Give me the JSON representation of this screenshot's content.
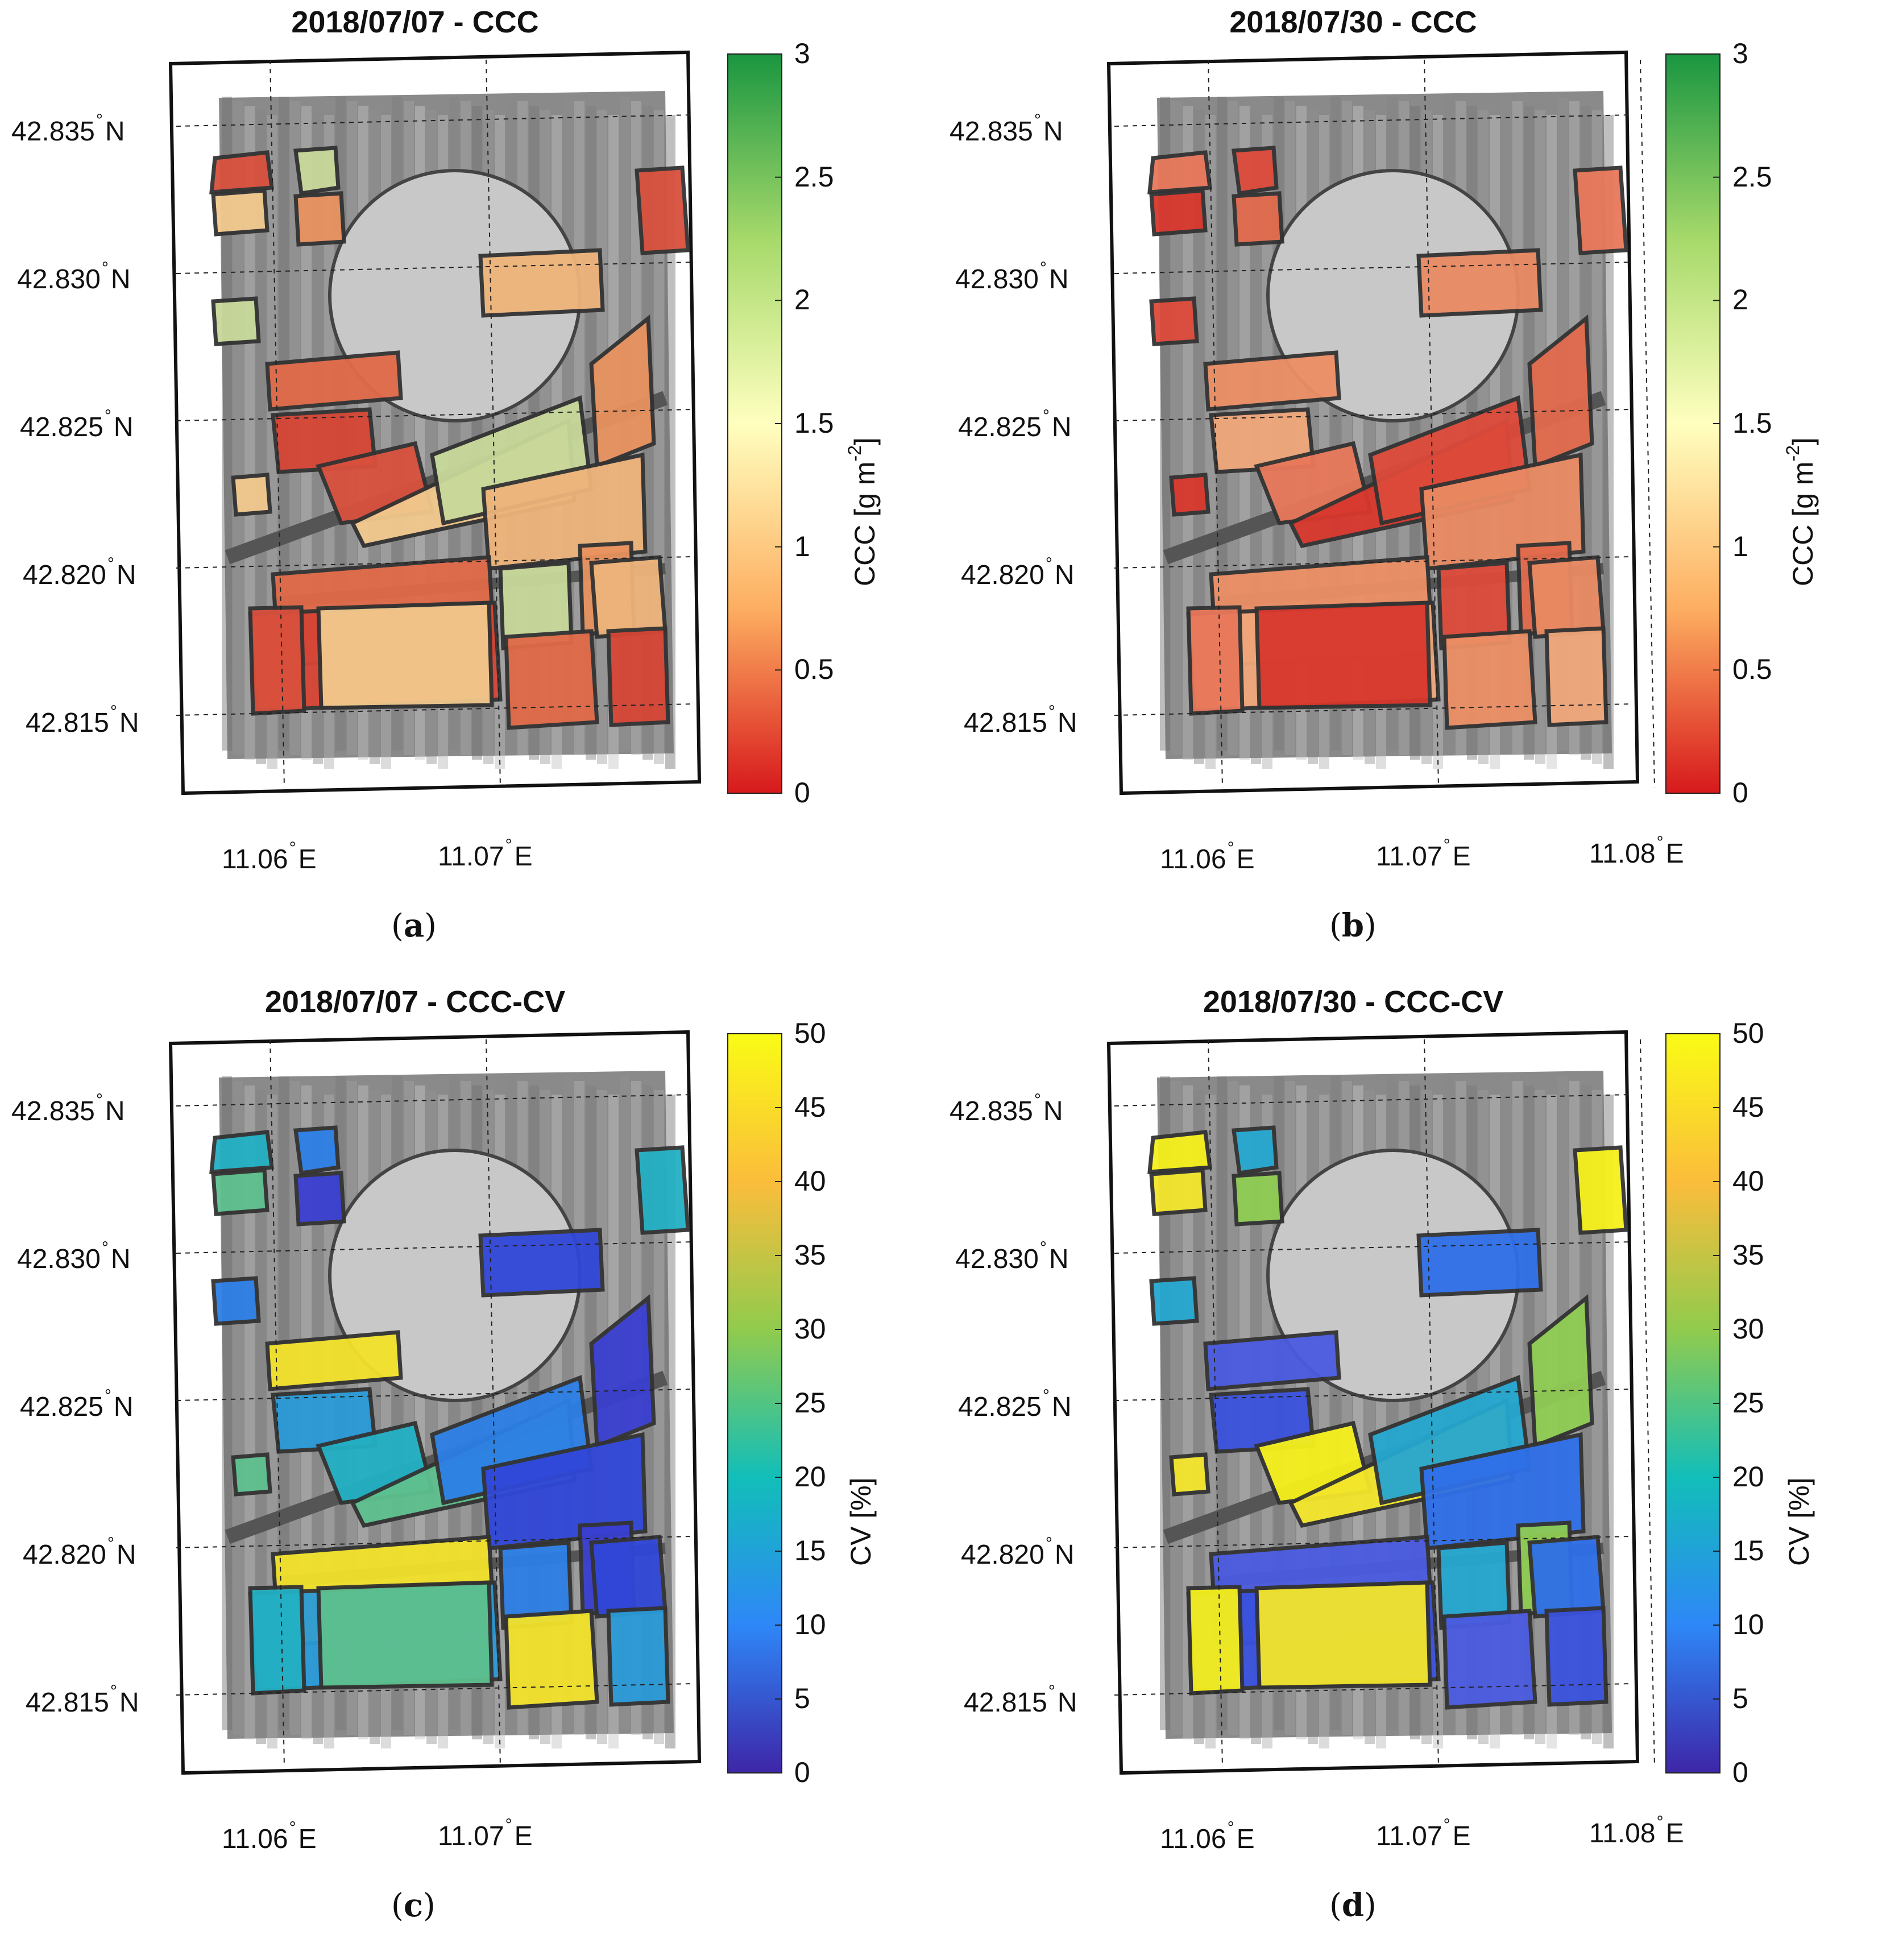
{
  "panels": [
    {
      "id": "a",
      "title": "2018/07/07 - CCC",
      "letter": "a",
      "lat_labels": [
        "42.835",
        "42.830",
        "42.825",
        "42.820",
        "42.815"
      ],
      "lon_labels": [
        "11.06",
        "11.07"
      ],
      "lat_suffix": "N",
      "lon_suffix": "E",
      "colorbar": {
        "label_main": "CCC [g m",
        "label_sup": "-2",
        "label_end": "]",
        "ticks": [
          "0",
          "0.5",
          "1",
          "1.5",
          "2",
          "2.5",
          "3"
        ],
        "colors": [
          "#d7191c",
          "#fdae61",
          "#ffffbf",
          "#a6d96a",
          "#1a9641"
        ]
      },
      "field_colors": [
        "#d9503d",
        "#e06a48",
        "#e8925f",
        "#f2c98d",
        "#d64535",
        "#eeb47b",
        "#c8d99a"
      ]
    },
    {
      "id": "b",
      "title": "2018/07/30 - CCC",
      "letter": "b",
      "lat_labels": [
        "42.835",
        "42.830",
        "42.825",
        "42.820",
        "42.815"
      ],
      "lon_labels": [
        "11.06",
        "11.07",
        "11.08"
      ],
      "lat_suffix": "N",
      "lon_suffix": "E",
      "colorbar": {
        "label_main": "CCC [g m",
        "label_sup": "-2",
        "label_end": "]",
        "ticks": [
          "0",
          "0.5",
          "1",
          "1.5",
          "2",
          "2.5",
          "3"
        ],
        "colors": [
          "#d7191c",
          "#fdae61",
          "#ffffbf",
          "#a6d96a",
          "#1a9641"
        ]
      },
      "field_colors": [
        "#dd4a3a",
        "#e8785a",
        "#ec8f65",
        "#e26a4c",
        "#d8372d",
        "#f0a77a",
        "#e98a63"
      ]
    },
    {
      "id": "c",
      "title": "2018/07/07 - CCC-CV",
      "letter": "c",
      "lat_labels": [
        "42.835",
        "42.830",
        "42.825",
        "42.820",
        "42.815"
      ],
      "lon_labels": [
        "11.06",
        "11.07"
      ],
      "lat_suffix": "N",
      "lon_suffix": "E",
      "colorbar": {
        "label_main": "CV [%]",
        "label_sup": "",
        "label_end": "",
        "ticks": [
          "0",
          "5",
          "10",
          "15",
          "20",
          "25",
          "30",
          "35",
          "40",
          "45",
          "50"
        ],
        "colors": [
          "#3e26a8",
          "#2e87f7",
          "#12beb9",
          "#91cb4d",
          "#fbbd3b",
          "#f9fb15"
        ]
      },
      "field_colors": [
        "#3147d8",
        "#2c7fe6",
        "#23b0c4",
        "#f3e22a",
        "#3a3fd0",
        "#5ec08e",
        "#2a9ad8"
      ]
    },
    {
      "id": "d",
      "title": "2018/07/30 - CCC-CV",
      "letter": "d",
      "lat_labels": [
        "42.835",
        "42.830",
        "42.825",
        "42.820",
        "42.815"
      ],
      "lon_labels": [
        "11.06",
        "11.07",
        "11.08"
      ],
      "lat_suffix": "N",
      "lon_suffix": "E",
      "colorbar": {
        "label_main": "CV [%]",
        "label_sup": "",
        "label_end": "",
        "ticks": [
          "0",
          "5",
          "10",
          "15",
          "20",
          "25",
          "30",
          "35",
          "40",
          "45",
          "50"
        ],
        "colors": [
          "#3e26a8",
          "#2e87f7",
          "#12beb9",
          "#91cb4d",
          "#fbbd3b",
          "#f9fb15"
        ]
      },
      "field_colors": [
        "#3a52de",
        "#2f6fe8",
        "#25a7d0",
        "#f6f01c",
        "#4a5be0",
        "#8fcc53",
        "#f4e62b"
      ]
    }
  ]
}
